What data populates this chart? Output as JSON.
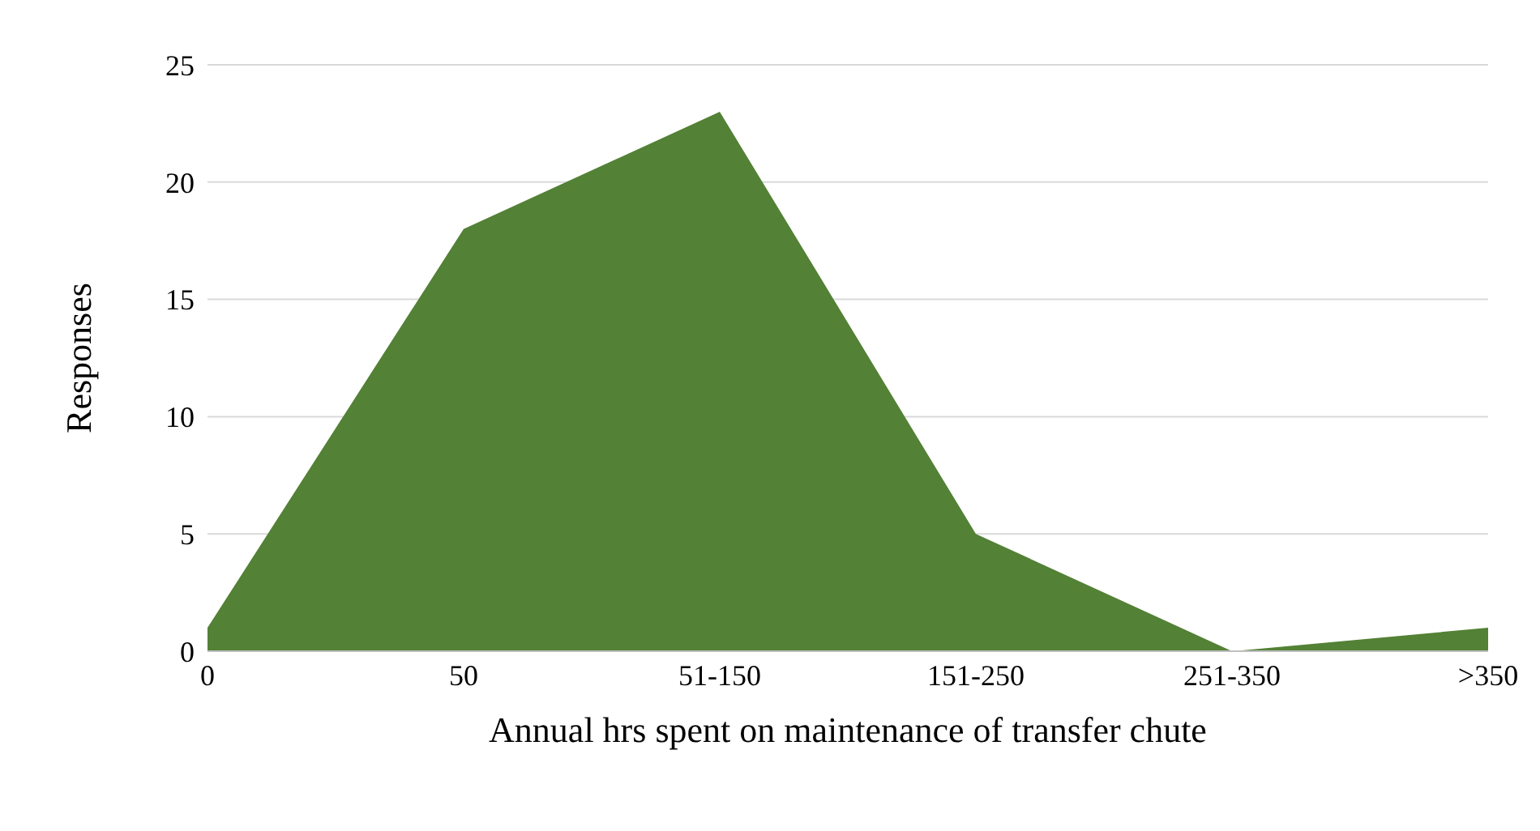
{
  "chart_data": {
    "type": "area",
    "xlabel": "Annual hrs spent on maintenance of transfer chute",
    "ylabel": "Responses",
    "categories": [
      "0",
      "50",
      "51-150",
      "151-250",
      "251-350",
      ">350"
    ],
    "values": [
      1,
      18,
      23,
      5,
      0,
      1
    ],
    "color": "#538135",
    "ylim": [
      0,
      25
    ],
    "yticks": [
      0,
      5,
      10,
      15,
      20,
      25
    ],
    "grid": "y",
    "legend": false
  }
}
